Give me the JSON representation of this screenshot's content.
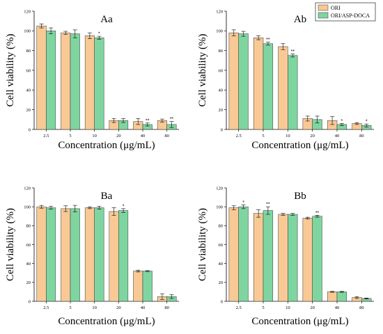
{
  "colors": {
    "ori": "#f8c995",
    "asp": "#7fd5a0",
    "stroke": "#333333"
  },
  "legend": [
    {
      "label": "ORI",
      "color": "#f8c995"
    },
    {
      "label": "ORI/ASP-DOCA",
      "color": "#7fd5a0"
    }
  ],
  "chart_data": [
    {
      "type": "bar",
      "title": "Aa",
      "xlabel": "Concentration (μg/mL)",
      "ylabel": "Cell viability (%)",
      "ylim": [
        0,
        120
      ],
      "yticks": [
        0,
        20,
        40,
        60,
        80,
        100,
        120
      ],
      "categories": [
        "2.5",
        "5",
        "10",
        "20",
        "40",
        "80"
      ],
      "series": [
        {
          "name": "ORI",
          "values": [
            105,
            98,
            95,
            9,
            8,
            9
          ],
          "errors": [
            2,
            1.5,
            3,
            2,
            3,
            1.5
          ]
        },
        {
          "name": "ORI/ASP-DOCA",
          "values": [
            100,
            97,
            93,
            9,
            5,
            5
          ],
          "errors": [
            3,
            4,
            1.5,
            2,
            1.5,
            3
          ]
        }
      ],
      "significance": [
        {
          "category": "10",
          "series": 1,
          "text": "*"
        },
        {
          "category": "40",
          "series": 1,
          "text": "**"
        },
        {
          "category": "80",
          "series": 1,
          "text": "**"
        }
      ],
      "legend": false
    },
    {
      "type": "bar",
      "title": "Ab",
      "xlabel": "Concentration (μg/mL)",
      "ylabel": "Cell viability (%)",
      "ylim": [
        0,
        120
      ],
      "yticks": [
        0,
        20,
        40,
        60,
        80,
        100,
        120
      ],
      "categories": [
        "2.5",
        "5",
        "10",
        "20",
        "40",
        "80"
      ],
      "series": [
        {
          "name": "ORI",
          "values": [
            98,
            93,
            84,
            11,
            9,
            6
          ],
          "errors": [
            3,
            2,
            3,
            2.5,
            4,
            1
          ]
        },
        {
          "name": "ORI/ASP-DOCA",
          "values": [
            97,
            87,
            75,
            10,
            5,
            4
          ],
          "errors": [
            2.5,
            1.5,
            1.5,
            3.5,
            1,
            1.5
          ]
        }
      ],
      "significance": [
        {
          "category": "5",
          "series": 1,
          "text": "**"
        },
        {
          "category": "10",
          "series": 1,
          "text": "**"
        },
        {
          "category": "40",
          "series": 1,
          "text": "*"
        },
        {
          "category": "80",
          "series": 1,
          "text": "*"
        }
      ],
      "legend": true,
      "legend_position": "top-right"
    },
    {
      "type": "bar",
      "title": "Ba",
      "xlabel": "Concentration (μg/mL)",
      "ylabel": "Cell viability (%)",
      "ylim": [
        0,
        120
      ],
      "yticks": [
        0,
        20,
        40,
        60,
        80,
        100,
        120
      ],
      "categories": [
        "2.5",
        "5",
        "10",
        "20",
        "40",
        "80"
      ],
      "series": [
        {
          "name": "ORI",
          "values": [
            100,
            98,
            99,
            95,
            32,
            5
          ],
          "errors": [
            1.5,
            3,
            1,
            4,
            1,
            3
          ]
        },
        {
          "name": "ORI/ASP-DOCA",
          "values": [
            99,
            98,
            99,
            96,
            32,
            5
          ],
          "errors": [
            1.5,
            3.5,
            1.5,
            2,
            0.5,
            2
          ]
        }
      ],
      "significance": [
        {
          "category": "20",
          "series": 1,
          "text": "*"
        }
      ],
      "legend": false
    },
    {
      "type": "bar",
      "title": "Bb",
      "xlabel": "Concentration (μg/mL)",
      "ylabel": "Cell viability (%)",
      "ylim": [
        0,
        120
      ],
      "yticks": [
        0,
        20,
        40,
        60,
        80,
        100,
        120
      ],
      "categories": [
        "2.5",
        "5",
        "10",
        "20",
        "40",
        "80"
      ],
      "series": [
        {
          "name": "ORI",
          "values": [
            99,
            93,
            92,
            88,
            10,
            4
          ],
          "errors": [
            2,
            4,
            1,
            1,
            0.5,
            1
          ]
        },
        {
          "name": "ORI/ASP-DOCA",
          "values": [
            100,
            96,
            92,
            90,
            10,
            3
          ],
          "errors": [
            2,
            4,
            1,
            1,
            0.5,
            0.5
          ]
        }
      ],
      "significance": [
        {
          "category": "2.5",
          "series": 1,
          "text": "*"
        },
        {
          "category": "5",
          "series": 1,
          "text": "**"
        },
        {
          "category": "20",
          "series": 1,
          "text": "**"
        }
      ],
      "legend": false
    }
  ]
}
